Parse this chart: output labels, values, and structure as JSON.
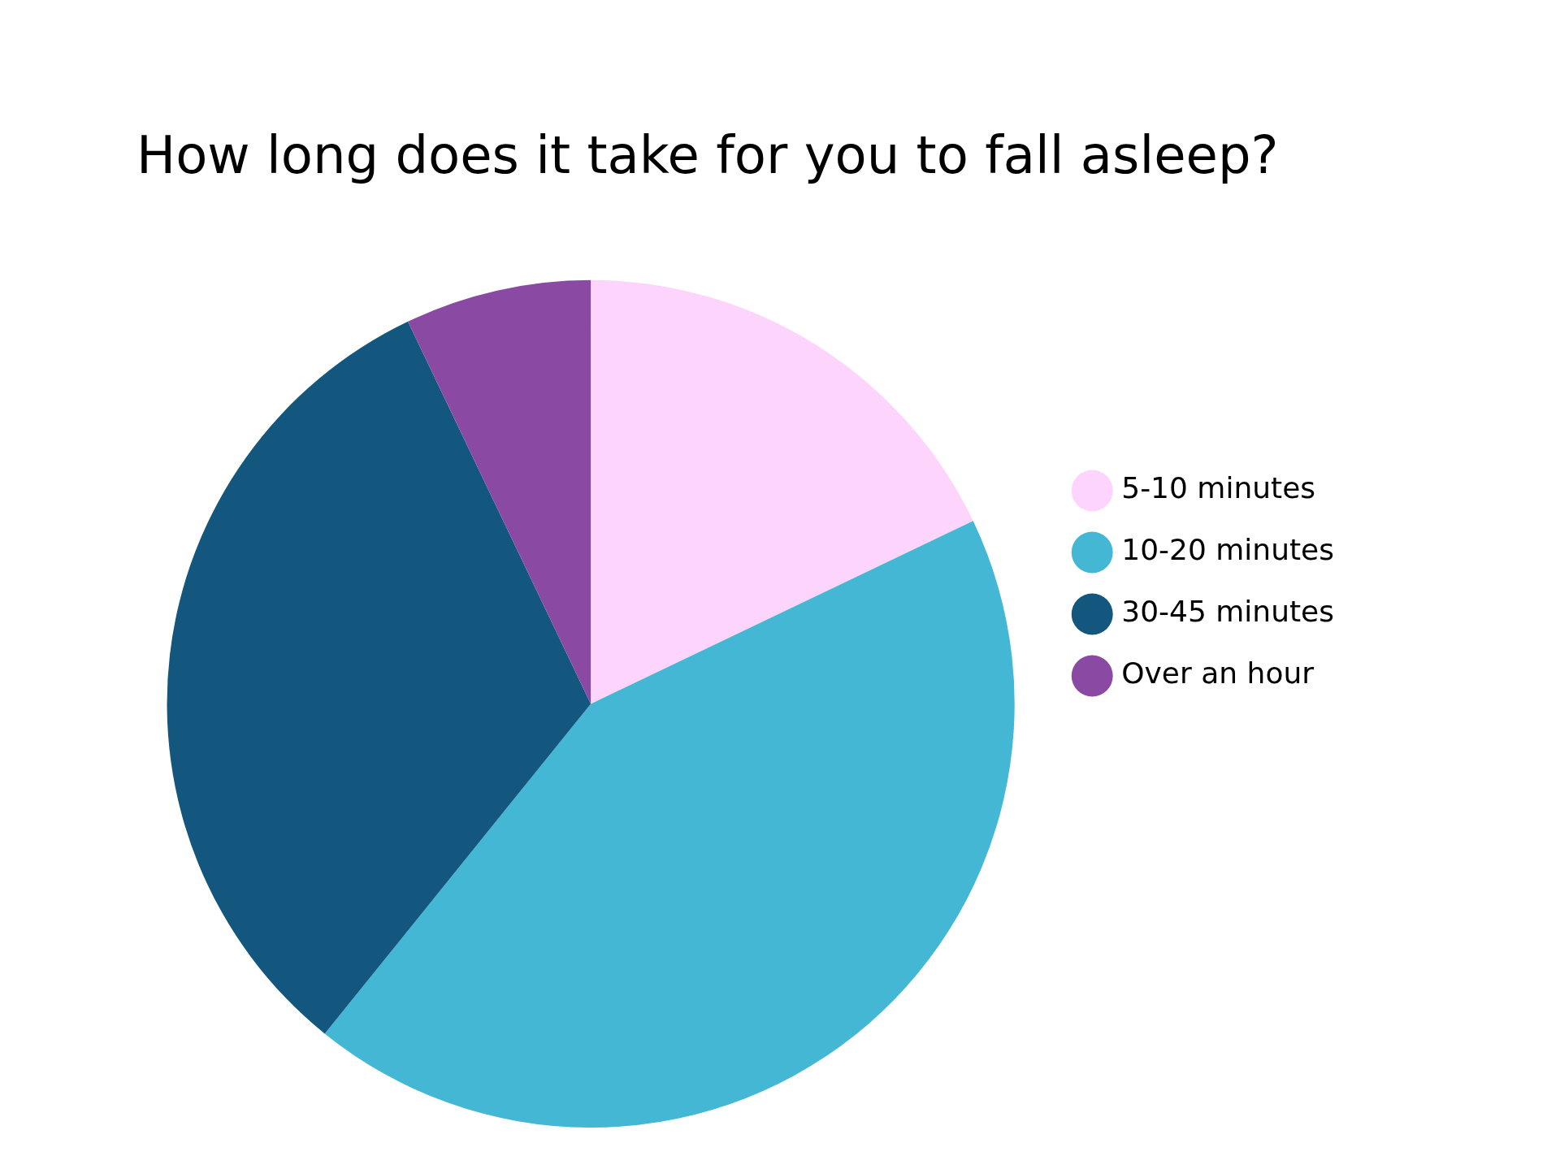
{
  "chart_data": {
    "type": "pie",
    "title": "How long does it take for you to fall asleep?",
    "categories": [
      "5-10 minutes",
      "10-20 minutes",
      "30-45 minutes",
      "Over an hour"
    ],
    "values": [
      17.9,
      42.9,
      32.1,
      7.1
    ],
    "colors": [
      "#fdd5fc",
      "#43b7d4",
      "#13577e",
      "#8a4aa3"
    ],
    "legend": "right"
  }
}
